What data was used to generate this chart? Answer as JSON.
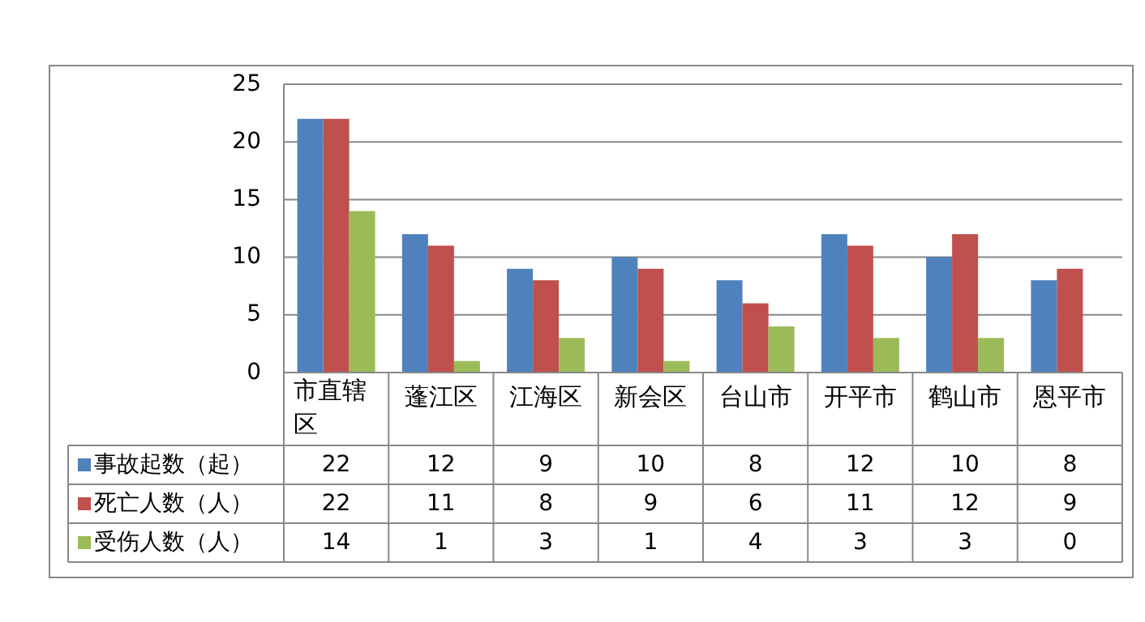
{
  "chart_data": {
    "type": "bar",
    "categories": [
      "市直辖区",
      "蓬江区",
      "江海区",
      "新会区",
      "台山市",
      "开平市",
      "鹤山市",
      "恩平市"
    ],
    "series": [
      {
        "name": "事故起数（起）",
        "color": "#4f81bd",
        "values": [
          22,
          12,
          9,
          10,
          8,
          12,
          10,
          8
        ]
      },
      {
        "name": "死亡人数（人）",
        "color": "#c0504d",
        "values": [
          22,
          11,
          8,
          9,
          6,
          11,
          12,
          9
        ]
      },
      {
        "name": "受伤人数（人）",
        "color": "#9bbb59",
        "values": [
          14,
          1,
          3,
          1,
          4,
          3,
          3,
          0
        ]
      }
    ],
    "ylim": [
      0,
      25
    ],
    "yticks": [
      0,
      5,
      10,
      15,
      20,
      25
    ],
    "grid": "y",
    "legend": "bottom",
    "data_labels": true
  }
}
